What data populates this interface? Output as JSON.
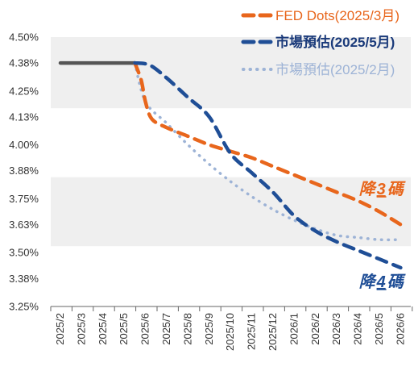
{
  "chart_data": {
    "type": "line",
    "categories": [
      "2025/2",
      "2025/3",
      "2025/4",
      "2025/5",
      "2025/6",
      "2025/7",
      "2025/8",
      "2025/9",
      "2025/10",
      "2025/11",
      "2025/12",
      "2026/1",
      "2026/2",
      "2026/3",
      "2026/4",
      "2026/5",
      "2026/6"
    ],
    "y_ticks": [
      "4.50%",
      "4.38%",
      "4.25%",
      "4.13%",
      "4.00%",
      "3.88%",
      "3.75%",
      "3.63%",
      "3.50%",
      "3.38%",
      "3.25%"
    ],
    "ylim": [
      3.25,
      4.5
    ],
    "grid": false,
    "legend_position": "top-right",
    "bands": [
      [
        4.17,
        4.5
      ],
      [
        3.53,
        3.85
      ]
    ],
    "historical": {
      "x": [
        0,
        3.5
      ],
      "y": [
        4.38,
        4.38
      ],
      "color": "#555555"
    },
    "series": [
      {
        "name": "FED Dots(2025/3月)",
        "color": "#E8661C",
        "style": "dashed",
        "x": [
          3.5,
          3.8,
          4.0,
          4.3,
          5,
          6,
          7,
          8,
          9,
          10,
          11,
          12,
          13,
          14,
          15,
          16
        ],
        "y": [
          4.38,
          4.3,
          4.2,
          4.12,
          4.08,
          4.04,
          4.0,
          3.97,
          3.94,
          3.9,
          3.86,
          3.82,
          3.78,
          3.74,
          3.69,
          3.63
        ]
      },
      {
        "name": "市場預估(2025/5月)",
        "color": "#1F4E96",
        "style": "dashed",
        "x": [
          3.5,
          4.2,
          5,
          6,
          7,
          8,
          9,
          10,
          11,
          12,
          13,
          14,
          15,
          16
        ],
        "y": [
          4.38,
          4.37,
          4.31,
          4.22,
          4.13,
          3.96,
          3.87,
          3.78,
          3.67,
          3.6,
          3.55,
          3.51,
          3.47,
          3.43
        ]
      },
      {
        "name": "市場預估(2025/2月)",
        "color": "#9DB3D6",
        "style": "dotted",
        "x": [
          3.5,
          4,
          5,
          6,
          7,
          8,
          9,
          10,
          11,
          12,
          13,
          14,
          15,
          16
        ],
        "y": [
          4.38,
          4.2,
          4.1,
          4.0,
          3.91,
          3.83,
          3.76,
          3.7,
          3.65,
          3.61,
          3.58,
          3.57,
          3.56,
          3.56
        ]
      }
    ],
    "annotations": [
      {
        "prefix": "降",
        "num": "3",
        "suffix": "碼",
        "color": "#E8661C",
        "x": 14.0,
        "y": 3.77
      },
      {
        "prefix": "降",
        "num": "4",
        "suffix": "碼",
        "color": "#1F4E96",
        "x": 14.0,
        "y": 3.34
      }
    ]
  }
}
